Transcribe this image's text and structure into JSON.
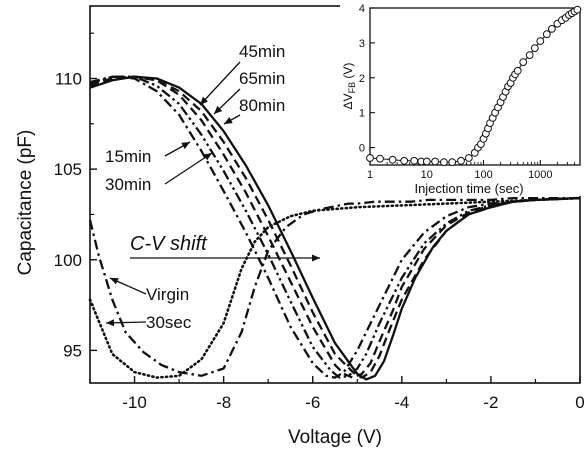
{
  "chart_data": [
    {
      "type": "line",
      "xlabel": "Voltage (V)",
      "ylabel": "Capacitance (pF)",
      "xlim": [
        -11,
        0
      ],
      "ylim": [
        93.2,
        114
      ],
      "xticks": [
        -10,
        -8,
        -6,
        -4,
        -2,
        0
      ],
      "yticks": [
        95,
        100,
        105,
        110
      ],
      "grid": false,
      "series": [
        {
          "name": "Virgin",
          "style": "dot",
          "x": [
            -11,
            -10.5,
            -10,
            -9.5,
            -9,
            -8.5,
            -8,
            -7.6,
            -7.3,
            -7,
            -6.5,
            -6,
            -5,
            -4,
            -3,
            -2,
            -1,
            0
          ],
          "y": [
            97.8,
            94.8,
            93.8,
            93.5,
            93.6,
            94.5,
            96.5,
            99.5,
            101.0,
            101.8,
            102.4,
            102.7,
            102.9,
            103.0,
            103.1,
            103.2,
            103.3,
            103.4
          ]
        },
        {
          "name": "30sec",
          "style": "dashdot",
          "x": [
            -11,
            -10.8,
            -10.5,
            -10.2,
            -9.8,
            -9.4,
            -9,
            -8.5,
            -8,
            -7.6,
            -7.3,
            -7,
            -6.6,
            -6.2,
            -5.8,
            -5.4,
            -5.2,
            -5,
            -4.6,
            -4.2,
            -3.8,
            -3.4,
            -3,
            -2.5,
            -2,
            -1.5,
            -1,
            0
          ],
          "y": [
            102.2,
            100.2,
            97.8,
            96.0,
            94.9,
            94.2,
            93.8,
            93.6,
            94.0,
            96.0,
            98.5,
            100.5,
            101.8,
            102.5,
            102.8,
            103.0,
            103.1,
            103.1,
            103.2,
            103.2,
            103.2,
            103.3,
            103.3,
            103.3,
            103.3,
            103.4,
            103.4,
            103.4
          ]
        },
        {
          "name": "15min",
          "style": "dashdot",
          "x": [
            -11,
            -10.5,
            -10,
            -9.5,
            -9,
            -8.5,
            -8,
            -7.5,
            -7,
            -6.5,
            -6,
            -5.7,
            -5.5,
            -5.3,
            -5,
            -4.7,
            -4.3,
            -4,
            -3.5,
            -3,
            -2.5,
            -2,
            -1.5,
            -1,
            0
          ],
          "y": [
            109.8,
            110.1,
            110.0,
            109.3,
            108.0,
            106.0,
            103.8,
            101.5,
            99.0,
            96.3,
            94.3,
            93.6,
            93.5,
            93.8,
            95.0,
            96.5,
            98.5,
            100.0,
            101.5,
            102.4,
            102.9,
            103.1,
            103.2,
            103.3,
            103.4
          ]
        },
        {
          "name": "30min",
          "style": "dashdotdot",
          "x": [
            -11,
            -10.5,
            -10,
            -9.5,
            -9,
            -8.5,
            -8,
            -7.5,
            -7,
            -6.5,
            -6,
            -5.6,
            -5.4,
            -5.2,
            -5,
            -4.8,
            -4.5,
            -4,
            -3.5,
            -3,
            -2.5,
            -2,
            -1.5,
            -1,
            0
          ],
          "y": [
            109.7,
            110.1,
            110.1,
            109.6,
            108.6,
            106.9,
            104.9,
            102.7,
            100.3,
            97.7,
            95.2,
            93.9,
            93.5,
            93.6,
            94.0,
            94.8,
            96.5,
            99.0,
            100.9,
            102.0,
            102.7,
            103.0,
            103.2,
            103.3,
            103.4
          ]
        },
        {
          "name": "45min",
          "style": "dash",
          "x": [
            -11,
            -10.5,
            -10,
            -9.5,
            -9,
            -8.5,
            -8,
            -7.5,
            -7,
            -6.5,
            -6,
            -5.5,
            -5.3,
            -5.1,
            -4.9,
            -4.7,
            -4.5,
            -4.2,
            -4,
            -3.5,
            -3,
            -2.5,
            -2,
            -1.5,
            -1,
            0
          ],
          "y": [
            109.7,
            110.0,
            110.1,
            109.9,
            109.1,
            107.7,
            105.8,
            103.7,
            101.3,
            98.8,
            96.3,
            94.2,
            93.7,
            93.5,
            93.7,
            94.3,
            95.5,
            97.2,
            98.5,
            100.6,
            101.9,
            102.6,
            103.0,
            103.2,
            103.3,
            103.4
          ]
        },
        {
          "name": "65min",
          "style": "dash",
          "x": [
            -11,
            -10.5,
            -10,
            -9.5,
            -9,
            -8.5,
            -8,
            -7.5,
            -7,
            -6.5,
            -6,
            -5.5,
            -5.1,
            -4.9,
            -4.7,
            -4.5,
            -4.3,
            -4,
            -3.5,
            -3,
            -2.5,
            -2,
            -1.5,
            -1,
            0
          ],
          "y": [
            109.6,
            110.0,
            110.1,
            109.9,
            109.3,
            108.2,
            106.5,
            104.5,
            102.2,
            99.7,
            97.1,
            94.8,
            93.8,
            93.5,
            93.8,
            94.7,
            96.0,
            97.8,
            100.0,
            101.6,
            102.5,
            102.9,
            103.2,
            103.3,
            103.4
          ]
        },
        {
          "name": "80min",
          "style": "solid",
          "x": [
            -11,
            -10.5,
            -10,
            -9.5,
            -9,
            -8.5,
            -8,
            -7.5,
            -7,
            -6.5,
            -6,
            -5.5,
            -5,
            -4.8,
            -4.6,
            -4.4,
            -4.2,
            -4,
            -3.7,
            -3.3,
            -3,
            -2.5,
            -2,
            -1.5,
            -1,
            0
          ],
          "y": [
            109.5,
            109.9,
            110.1,
            110.0,
            109.5,
            108.6,
            107.1,
            105.2,
            103.0,
            100.5,
            97.9,
            95.4,
            93.7,
            93.4,
            93.6,
            94.4,
            95.8,
            97.3,
            99.0,
            100.7,
            101.6,
            102.5,
            102.9,
            103.2,
            103.3,
            103.4
          ]
        }
      ],
      "annotations": {
        "labels": [
          {
            "text": "45min"
          },
          {
            "text": "65min"
          },
          {
            "text": "80min"
          },
          {
            "text": "15min"
          },
          {
            "text": "30min"
          },
          {
            "text": "Virgin"
          },
          {
            "text": "30sec"
          }
        ],
        "shift_text": "C-V shift"
      }
    },
    {
      "type": "scatter",
      "inset": true,
      "xlabel": "Injection time (sec)",
      "ylabel": "ΔV",
      "ylabel_sub": "FB",
      "ylabel_unit": "(V)",
      "xscale": "log",
      "xlim": [
        1,
        5000
      ],
      "ylim": [
        -0.5,
        4
      ],
      "xticks": [
        1,
        10,
        100,
        1000
      ],
      "xtick_labels": [
        "1",
        "10",
        "100",
        "1000"
      ],
      "yticks": [
        0,
        1,
        2,
        3,
        4
      ],
      "marker": "open-circle",
      "x": [
        1,
        1.5,
        2.5,
        4,
        6,
        8,
        10,
        14,
        20,
        28,
        40,
        55,
        70,
        80,
        90,
        100,
        110,
        120,
        130,
        145,
        160,
        180,
        200,
        220,
        245,
        270,
        300,
        330,
        360,
        400,
        500,
        650,
        800,
        1000,
        1300,
        1600,
        2000,
        2400,
        2800,
        3200,
        3600,
        4000,
        4500
      ],
      "y": [
        -0.3,
        -0.32,
        -0.35,
        -0.38,
        -0.38,
        -0.4,
        -0.4,
        -0.4,
        -0.42,
        -0.42,
        -0.38,
        -0.3,
        -0.15,
        0.0,
        0.1,
        0.25,
        0.4,
        0.55,
        0.7,
        0.85,
        1.0,
        1.15,
        1.3,
        1.45,
        1.6,
        1.75,
        1.85,
        2.0,
        2.1,
        2.2,
        2.45,
        2.65,
        2.85,
        3.05,
        3.25,
        3.4,
        3.55,
        3.65,
        3.72,
        3.8,
        3.85,
        3.9,
        3.95
      ]
    }
  ]
}
